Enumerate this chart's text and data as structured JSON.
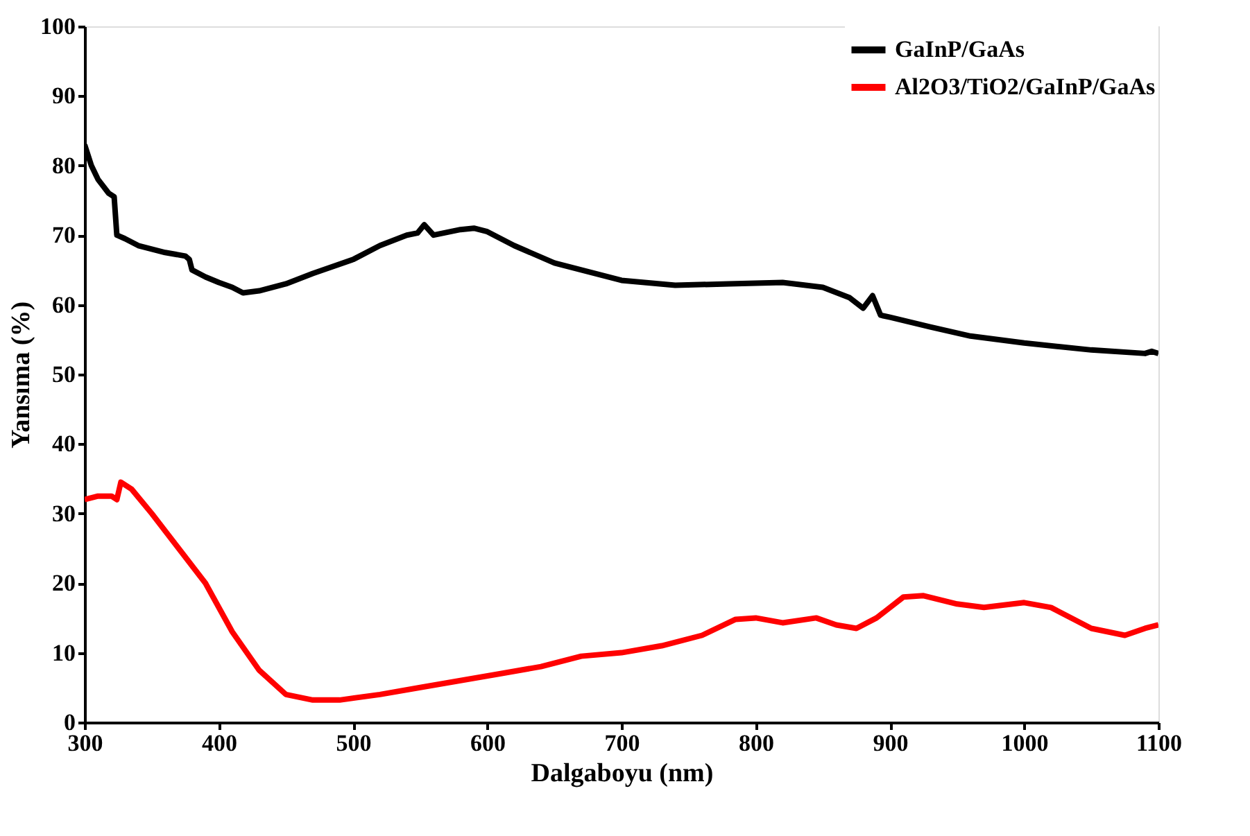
{
  "chart_data": {
    "type": "line",
    "xlabel": "Dalgaboyu (nm)",
    "ylabel": "Yansıma (%)",
    "xlim": [
      300,
      1100
    ],
    "xticks": [
      300,
      400,
      500,
      600,
      700,
      800,
      900,
      1000,
      1100
    ],
    "ylim": [
      0,
      100
    ],
    "yticks": [
      0,
      10,
      20,
      30,
      40,
      50,
      60,
      70,
      80,
      90,
      100
    ],
    "grid": false,
    "legend": "top right",
    "marker": "none",
    "line_style": "solid",
    "series": [
      {
        "name": "GaInP/GaAs",
        "color": "#000000",
        "x": [
          300,
          305,
          310,
          318,
          322,
          324,
          330,
          340,
          360,
          375,
          378,
          380,
          390,
          400,
          410,
          418,
          430,
          450,
          470,
          500,
          520,
          540,
          548,
          553,
          560,
          580,
          590,
          600,
          620,
          650,
          700,
          740,
          780,
          820,
          850,
          870,
          880,
          887,
          893,
          900,
          930,
          960,
          1000,
          1050,
          1090,
          1095,
          1100
        ],
        "values": [
          83,
          80,
          78,
          76,
          75.5,
          70,
          69.5,
          68.5,
          67.5,
          67,
          66.5,
          65,
          64,
          63.2,
          62.5,
          61.7,
          62,
          63,
          64.5,
          66.5,
          68.5,
          70,
          70.3,
          71.5,
          70,
          70.8,
          71,
          70.5,
          68.5,
          66,
          63.5,
          62.8,
          63,
          63.2,
          62.5,
          61,
          59.5,
          61.3,
          58.5,
          58.2,
          56.8,
          55.5,
          54.5,
          53.5,
          53,
          53.3,
          53
        ]
      },
      {
        "name": "Al2O3/TiO2/GaInP/GaAs",
        "color": "#ff0000",
        "x": [
          300,
          310,
          320,
          324,
          327,
          335,
          350,
          370,
          390,
          410,
          430,
          450,
          470,
          490,
          520,
          550,
          580,
          610,
          640,
          670,
          700,
          730,
          760,
          785,
          800,
          820,
          845,
          860,
          875,
          890,
          910,
          925,
          950,
          970,
          1000,
          1020,
          1050,
          1075,
          1090,
          1100
        ],
        "values": [
          32,
          32.5,
          32.5,
          32,
          34.5,
          33.5,
          30,
          25,
          20,
          13,
          7.5,
          4,
          3.2,
          3.2,
          4,
          5,
          6,
          7,
          8,
          9.5,
          10,
          11,
          12.5,
          14.8,
          15,
          14.3,
          15,
          14,
          13.5,
          15,
          18,
          18.2,
          17,
          16.5,
          17.2,
          16.5,
          13.5,
          12.5,
          13.5,
          14
        ]
      }
    ]
  }
}
